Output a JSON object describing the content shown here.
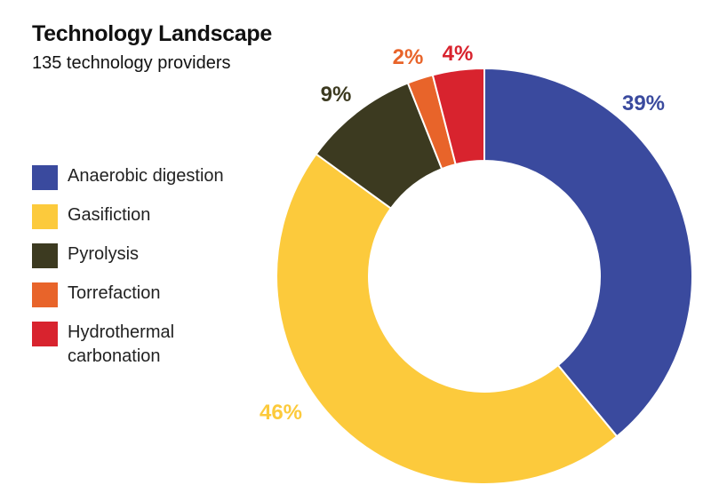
{
  "chart_data": {
    "type": "pie",
    "donut": true,
    "title": "Technology Landscape",
    "subtitle": "135 technology providers",
    "slices": [
      {
        "name": "Anaerobic digestion",
        "value": 39,
        "label": "39%",
        "color": "#3a4a9e"
      },
      {
        "name": "Gasifiction",
        "value": 46,
        "label": "46%",
        "color": "#fcca3c"
      },
      {
        "name": "Pyrolysis",
        "value": 9,
        "label": "9%",
        "color": "#3c3a20"
      },
      {
        "name": "Torrefaction",
        "value": 2,
        "label": "2%",
        "color": "#e8642a"
      },
      {
        "name": "Hydrothermal carbonation",
        "value": 4,
        "label": "4%",
        "color": "#d8232e"
      }
    ],
    "legend_position": "left"
  },
  "legend": {
    "items": [
      {
        "line1": "Anaerobic digestion",
        "line2": ""
      },
      {
        "line1": "Gasifiction",
        "line2": ""
      },
      {
        "line1": "Pyrolysis",
        "line2": ""
      },
      {
        "line1": "Torrefaction",
        "line2": ""
      },
      {
        "line1": "Hydrothermal",
        "line2": "carbonation"
      }
    ]
  }
}
